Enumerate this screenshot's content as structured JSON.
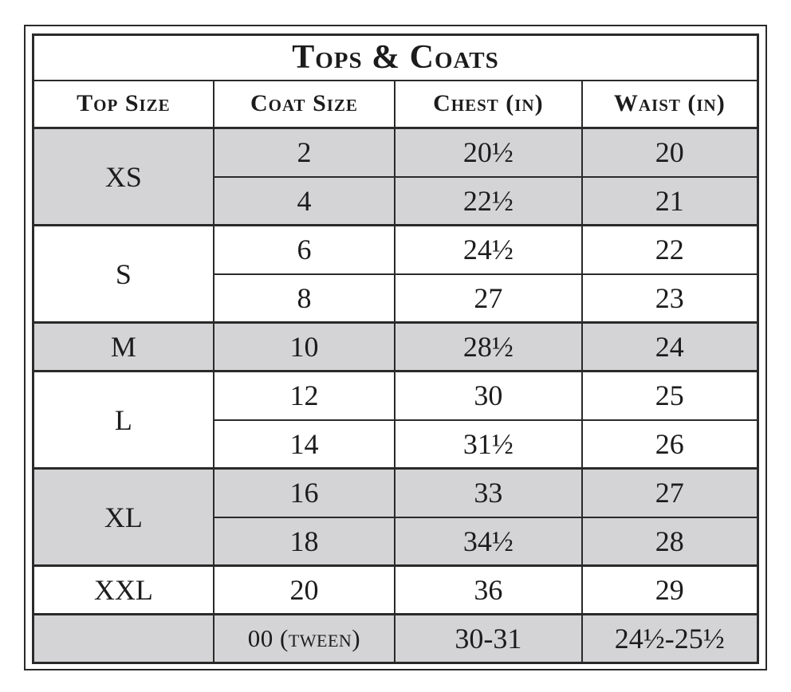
{
  "table": {
    "title": "Tops & Coats",
    "headers": [
      "Top Size",
      "Coat Size",
      "Chest (in)",
      "Waist (in)"
    ],
    "groups": [
      {
        "top_size": "XS",
        "rows": [
          {
            "coat": "2",
            "chest": "20½",
            "waist": "20"
          },
          {
            "coat": "4",
            "chest": "22½",
            "waist": "21"
          }
        ]
      },
      {
        "top_size": "S",
        "rows": [
          {
            "coat": "6",
            "chest": "24½",
            "waist": "22"
          },
          {
            "coat": "8",
            "chest": "27",
            "waist": "23"
          }
        ]
      },
      {
        "top_size": "M",
        "rows": [
          {
            "coat": "10",
            "chest": "28½",
            "waist": "24"
          }
        ]
      },
      {
        "top_size": "L",
        "rows": [
          {
            "coat": "12",
            "chest": "30",
            "waist": "25"
          },
          {
            "coat": "14",
            "chest": "31½",
            "waist": "26"
          }
        ]
      },
      {
        "top_size": "XL",
        "rows": [
          {
            "coat": "16",
            "chest": "33",
            "waist": "27"
          },
          {
            "coat": "18",
            "chest": "34½",
            "waist": "28"
          }
        ]
      },
      {
        "top_size": "XXL",
        "rows": [
          {
            "coat": "20",
            "chest": "36",
            "waist": "29"
          }
        ]
      },
      {
        "top_size": "",
        "rows": [
          {
            "coat": "00 (tween)",
            "chest": "30-31",
            "waist": "24½-25½"
          }
        ]
      }
    ],
    "colors": {
      "row_shade": "#d4d4d6",
      "border": "#2a2a2a",
      "text": "#1c1c1c",
      "background": "#ffffff"
    }
  },
  "chart_data": {
    "type": "table",
    "title": "Tops & Coats",
    "columns": [
      "Top Size",
      "Coat Size",
      "Chest (in)",
      "Waist (in)"
    ],
    "rows": [
      [
        "XS",
        "2",
        "20½",
        "20"
      ],
      [
        "XS",
        "4",
        "22½",
        "21"
      ],
      [
        "S",
        "6",
        "24½",
        "22"
      ],
      [
        "S",
        "8",
        "27",
        "23"
      ],
      [
        "M",
        "10",
        "28½",
        "24"
      ],
      [
        "L",
        "12",
        "30",
        "25"
      ],
      [
        "L",
        "14",
        "31½",
        "26"
      ],
      [
        "XL",
        "16",
        "33",
        "27"
      ],
      [
        "XL",
        "18",
        "34½",
        "28"
      ],
      [
        "XXL",
        "20",
        "36",
        "29"
      ],
      [
        "",
        "00 (tween)",
        "30-31",
        "24½-25½"
      ]
    ]
  }
}
